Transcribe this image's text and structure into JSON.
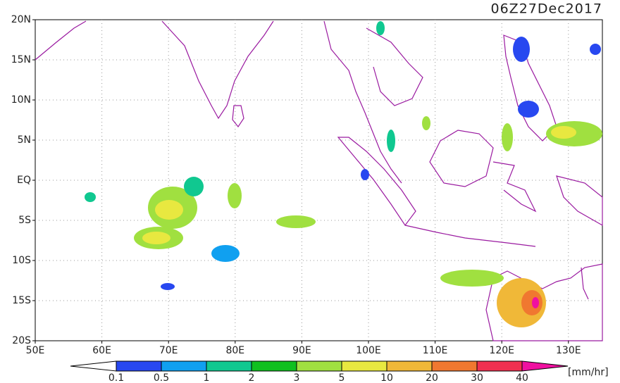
{
  "title": "06Z27Dec2017",
  "lat_labels": [
    "20N",
    "15N",
    "10N",
    "5N",
    "EQ",
    "5S",
    "10S",
    "15S",
    "20S"
  ],
  "lon_labels": [
    "50E",
    "60E",
    "70E",
    "80E",
    "90E",
    "100E",
    "110E",
    "120E",
    "130E"
  ],
  "legend": {
    "labels": [
      "0.1",
      "0.5",
      "1",
      "2",
      "3",
      "5",
      "10",
      "20",
      "30",
      "40"
    ],
    "colors": [
      "#2848f0",
      "#10a0f0",
      "#10c890",
      "#10c020",
      "#a0e040",
      "#e8e840",
      "#f0b838",
      "#f07830",
      "#f03050",
      "#f010a0"
    ],
    "unit": "[mm/hr]"
  }
}
